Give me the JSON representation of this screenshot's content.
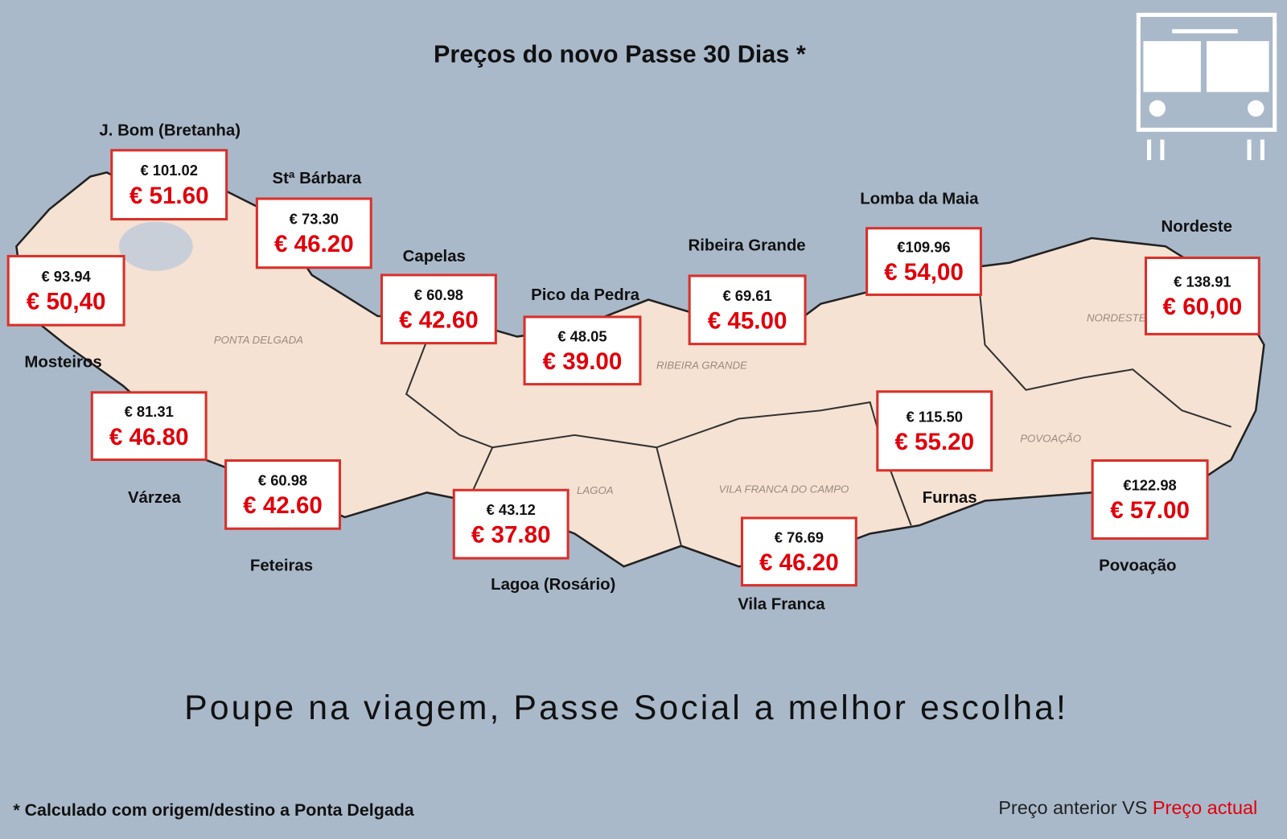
{
  "header": {
    "title": "Preços do novo Passe 30 Dias *"
  },
  "places": [
    {
      "name": "J. Bom (Bretanha)",
      "old_price": "€ 101.02",
      "new_price": "€ 51.60"
    },
    {
      "name": "Stª Bárbara",
      "old_price": "€ 73.30",
      "new_price": "€ 46.20"
    },
    {
      "name": "Mosteiros",
      "old_price": "€ 93.94",
      "new_price": "€ 50,40"
    },
    {
      "name": "Capelas",
      "old_price": "€ 60.98",
      "new_price": "€ 42.60"
    },
    {
      "name": "Pico da Pedra",
      "old_price": "€ 48.05",
      "new_price": "€ 39.00"
    },
    {
      "name": "Ribeira Grande",
      "old_price": "€ 69.61",
      "new_price": "€ 45.00"
    },
    {
      "name": "Lomba da Maia",
      "old_price": "€109.96",
      "new_price": "€ 54,00"
    },
    {
      "name": "Nordeste",
      "old_price": "€ 138.91",
      "new_price": "€ 60,00"
    },
    {
      "name": "Várzea",
      "old_price": "€ 81.31",
      "new_price": "€ 46.80"
    },
    {
      "name": "Feteiras",
      "old_price": "€ 60.98",
      "new_price": "€ 42.60"
    },
    {
      "name": "Lagoa (Rosário)",
      "old_price": "€ 43.12",
      "new_price": "€ 37.80"
    },
    {
      "name": "Vila Franca",
      "old_price": "€ 76.69",
      "new_price": "€ 46.20"
    },
    {
      "name": "Furnas",
      "old_price": "€ 115.50",
      "new_price": "€ 55.20"
    },
    {
      "name": "Povoação",
      "old_price": "€122.98",
      "new_price": "€ 57.00"
    }
  ],
  "map_labels": [
    "PONTA DELGADA",
    "RIBEIRA GRANDE",
    "NORDESTE",
    "POVOAÇÃO",
    "LAGOA",
    "VILA FRANCA DO CAMPO"
  ],
  "slogan": "Poupe na viagem, Passe Social a melhor escolha!",
  "footnote": "* Calculado com origem/destino a Ponta Delgada",
  "legend": {
    "previous": "Preço anterior VS",
    "current": "Preço actual"
  }
}
